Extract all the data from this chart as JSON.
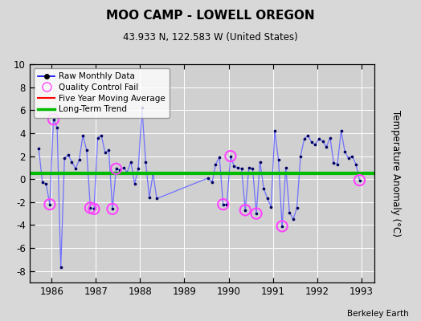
{
  "title": "MOO CAMP - LOWELL OREGON",
  "subtitle": "43.933 N, 122.583 W (United States)",
  "ylabel": "Temperature Anomaly (°C)",
  "credit": "Berkeley Earth",
  "ylim": [
    -9,
    10
  ],
  "yticks": [
    -8,
    -6,
    -4,
    -2,
    0,
    2,
    4,
    6,
    8,
    10
  ],
  "xlim": [
    1985.5,
    1993.3
  ],
  "xticks": [
    1986,
    1987,
    1988,
    1989,
    1990,
    1991,
    1992,
    1993
  ],
  "background_color": "#d8d8d8",
  "plot_bg_color": "#d0d0d0",
  "raw_data": [
    [
      1985.708,
      2.7
    ],
    [
      1985.792,
      -0.3
    ],
    [
      1985.875,
      -0.4
    ],
    [
      1985.958,
      -2.2
    ],
    [
      1986.042,
      5.2
    ],
    [
      1986.125,
      4.5
    ],
    [
      1986.208,
      -7.7
    ],
    [
      1986.292,
      1.8
    ],
    [
      1986.375,
      2.1
    ],
    [
      1986.458,
      1.5
    ],
    [
      1986.542,
      0.9
    ],
    [
      1986.625,
      1.7
    ],
    [
      1986.708,
      3.8
    ],
    [
      1986.792,
      2.5
    ],
    [
      1986.875,
      -2.5
    ],
    [
      1986.958,
      -2.6
    ],
    [
      1987.042,
      3.6
    ],
    [
      1987.125,
      3.8
    ],
    [
      1987.208,
      2.3
    ],
    [
      1987.292,
      2.5
    ],
    [
      1987.375,
      -2.6
    ],
    [
      1987.458,
      0.9
    ],
    [
      1987.542,
      0.8
    ],
    [
      1987.625,
      1.0
    ],
    [
      1987.708,
      0.6
    ],
    [
      1987.792,
      1.5
    ],
    [
      1987.875,
      -0.4
    ],
    [
      1987.958,
      0.9
    ],
    [
      1988.042,
      6.2
    ],
    [
      1988.125,
      1.5
    ],
    [
      1988.208,
      -1.6
    ],
    [
      1988.292,
      0.5
    ],
    [
      1988.375,
      -1.7
    ],
    [
      1989.542,
      0.1
    ],
    [
      1989.625,
      -0.3
    ],
    [
      1989.708,
      1.3
    ],
    [
      1989.792,
      1.9
    ],
    [
      1989.875,
      -2.2
    ],
    [
      1989.958,
      -2.2
    ],
    [
      1990.042,
      2.0
    ],
    [
      1990.125,
      1.1
    ],
    [
      1990.208,
      1.0
    ],
    [
      1990.292,
      0.9
    ],
    [
      1990.375,
      -2.7
    ],
    [
      1990.458,
      1.0
    ],
    [
      1990.542,
      0.9
    ],
    [
      1990.625,
      -3.0
    ],
    [
      1990.708,
      1.5
    ],
    [
      1990.792,
      -0.8
    ],
    [
      1990.875,
      -1.7
    ],
    [
      1990.958,
      -2.4
    ],
    [
      1991.042,
      4.2
    ],
    [
      1991.125,
      1.7
    ],
    [
      1991.208,
      -4.1
    ],
    [
      1991.292,
      1.0
    ],
    [
      1991.375,
      -2.9
    ],
    [
      1991.458,
      -3.5
    ],
    [
      1991.542,
      -2.5
    ],
    [
      1991.625,
      2.0
    ],
    [
      1991.708,
      3.5
    ],
    [
      1991.792,
      3.8
    ],
    [
      1991.875,
      3.2
    ],
    [
      1991.958,
      3.0
    ],
    [
      1992.042,
      3.5
    ],
    [
      1992.125,
      3.3
    ],
    [
      1992.208,
      2.8
    ],
    [
      1992.292,
      3.6
    ],
    [
      1992.375,
      1.4
    ],
    [
      1992.458,
      1.3
    ],
    [
      1992.542,
      4.2
    ],
    [
      1992.625,
      2.4
    ],
    [
      1992.708,
      1.8
    ],
    [
      1992.792,
      2.0
    ],
    [
      1992.875,
      1.3
    ],
    [
      1992.958,
      -0.1
    ]
  ],
  "qc_fail_points": [
    [
      1985.958,
      -2.2
    ],
    [
      1986.042,
      5.2
    ],
    [
      1986.875,
      -2.5
    ],
    [
      1986.958,
      -2.6
    ],
    [
      1987.375,
      -2.6
    ],
    [
      1987.458,
      0.9
    ],
    [
      1989.875,
      -2.2
    ],
    [
      1990.042,
      2.0
    ],
    [
      1990.375,
      -2.7
    ],
    [
      1990.625,
      -3.0
    ],
    [
      1991.208,
      -4.1
    ],
    [
      1992.958,
      -0.1
    ]
  ],
  "line_color": "#7070ff",
  "dot_color": "#000060",
  "qc_color": "#ff44ff",
  "moving_avg_color": "#ff0000",
  "trend_color": "#00bb00",
  "trend_y": 0.5,
  "legend_line_color": "#0000ff",
  "legend_dot_color": "#000000"
}
